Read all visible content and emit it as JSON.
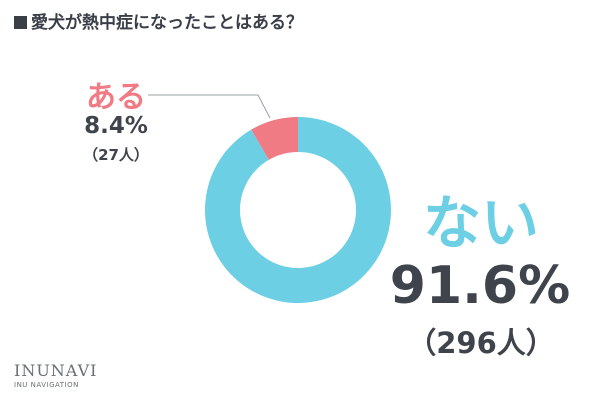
{
  "header": {
    "title": "愛犬が熱中症になったことはある？"
  },
  "chart_data": {
    "type": "pie",
    "title": "愛犬が熱中症になったことはある？",
    "categories": [
      "ある",
      "ない"
    ],
    "values": [
      8.4,
      91.6
    ],
    "counts": [
      27,
      296
    ],
    "slices": [
      {
        "label": "ある",
        "percent_text": "8.4%",
        "count_text": "（27人）",
        "value": 8.4,
        "count": 27,
        "color": "#f07b85"
      },
      {
        "label": "ない",
        "percent_text": "91.6%",
        "count_text": "（296人）",
        "value": 91.6,
        "count": 296,
        "color": "#6ccfe4"
      }
    ],
    "legend": "none"
  },
  "logo": {
    "brand": "INUNAVI",
    "sub": "INU NAVIGATION"
  }
}
